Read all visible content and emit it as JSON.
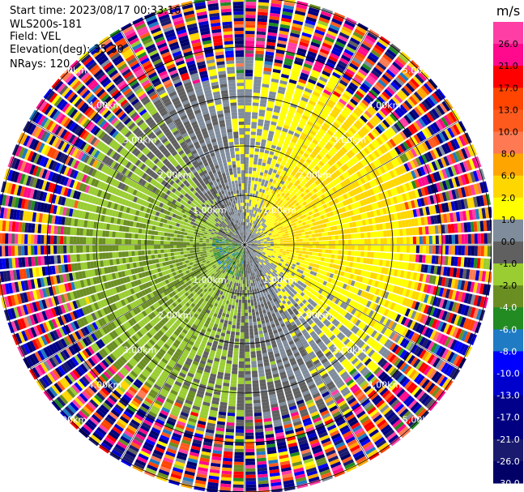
{
  "header": {
    "start_time": "Start time: 2023/08/17 00:33:16",
    "instrument": "WLS200s-181",
    "field": "Field: VEL",
    "elevation": "Elevation(deg): 35.30",
    "nrays": "NRays: 120"
  },
  "chart_data": {
    "type": "ppi-polar-heatmap",
    "field": "VEL",
    "units": "m/s",
    "nrays": 120,
    "range_rings_km": [
      1,
      2,
      3,
      4,
      5
    ],
    "ring_labels": [
      "1.00km",
      "2.00km",
      "3.00km",
      "4.00km",
      "5.00km"
    ],
    "max_range_km": 5.0,
    "colorbar": {
      "label": "m/s",
      "ticks": [
        "26.0",
        "21.0",
        "17.0",
        "13.0",
        "10.0",
        "8.0",
        "6.0",
        "2.0",
        "1.0",
        "0.0",
        "-1.0",
        "-2.0",
        "-4.0",
        "-6.0",
        "-8.0",
        "-10.0",
        "-13.0",
        "-17.0",
        "-21.0",
        "-26.0",
        "-30.0"
      ],
      "levels": [
        30,
        26,
        21,
        17,
        13,
        10,
        8,
        6,
        2,
        1,
        0,
        -1,
        -2,
        -4,
        -6,
        -8,
        -10,
        -13,
        -17,
        -21,
        -26,
        -30
      ],
      "colors": [
        "#ff3ea5",
        "#ff0a8c",
        "#ff0000",
        "#ff4500",
        "#ff5a1e",
        "#ff7a52",
        "#ffa500",
        "#ffd700",
        "#ffff00",
        "#7f8c9c",
        "#606060",
        "#9acd32",
        "#6b8e23",
        "#228b22",
        "#1e7bc4",
        "#0000ff",
        "#0000cd",
        "#00008b",
        "#000080",
        "#1a1a6e",
        "#000066"
      ]
    },
    "near_field": {
      "positive_velocity_sector": "east-south (yellow/orange, ~1-3 m/s)",
      "negative_velocity_sector": "west-north (green/gray, ~-1 to -4 m/s)"
    }
  }
}
